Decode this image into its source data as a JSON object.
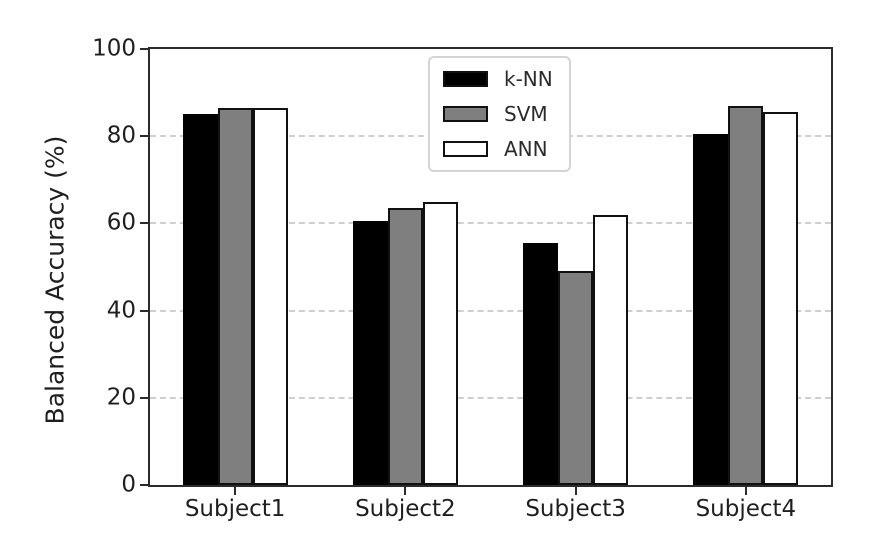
{
  "chart_data": {
    "type": "bar",
    "title": "",
    "categories": [
      "Subject1",
      "Subject2",
      "Subject3",
      "Subject4"
    ],
    "series": [
      {
        "name": "k-NN",
        "fill": "#000000",
        "values": [
          85,
          60.5,
          55.5,
          80.5
        ]
      },
      {
        "name": "SVM",
        "fill": "#7f7f7f",
        "values": [
          86.5,
          63.5,
          49,
          87
        ]
      },
      {
        "name": "ANN",
        "fill": "#ffffff",
        "values": [
          86.5,
          65,
          62,
          85.5
        ]
      }
    ],
    "xlabel": "",
    "ylabel": "Balanced Accuracy (%)",
    "ylim": [
      0,
      100
    ],
    "yticks": [
      0,
      20,
      40,
      60,
      80,
      100
    ],
    "grid": "horizontal dashed (at 20, 40, 60, 80)",
    "legend_position": "upper center",
    "bar_edge_color": "#111111"
  },
  "style": {
    "background": "#ffffff",
    "spine_color": "#2b2b2b",
    "grid_color": "#cfcfcf",
    "text_color": "#1f1f1f",
    "legend_border_color": "#d4d4d4"
  }
}
